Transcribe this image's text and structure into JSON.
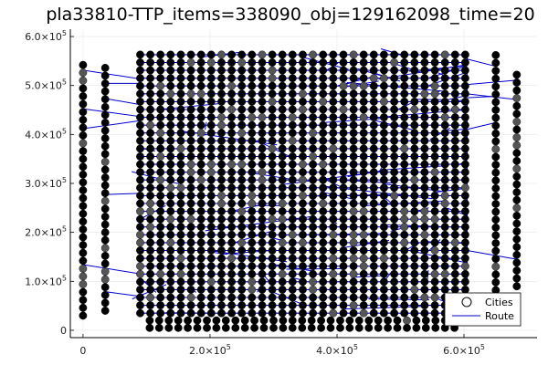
{
  "chart_data": {
    "type": "scatter",
    "title": "pla33810-TTP_items=338090_obj=129162098_time=20",
    "xlabel": "",
    "ylabel": "",
    "xlim": [
      -20000,
      715000
    ],
    "ylim": [
      -15000,
      615000
    ],
    "grid": true,
    "legend_position": "bottom-right",
    "x_ticks": [
      {
        "value": 0,
        "mantissa": "0",
        "exponent": ""
      },
      {
        "value": 200000,
        "mantissa": "2.0×10",
        "exponent": "5"
      },
      {
        "value": 400000,
        "mantissa": "4.0×10",
        "exponent": "5"
      },
      {
        "value": 600000,
        "mantissa": "6.0×10",
        "exponent": "5"
      }
    ],
    "y_ticks": [
      {
        "value": 0,
        "mantissa": "0",
        "exponent": ""
      },
      {
        "value": 100000,
        "mantissa": "1.0×10",
        "exponent": "5"
      },
      {
        "value": 200000,
        "mantissa": "2.0×10",
        "exponent": "5"
      },
      {
        "value": 300000,
        "mantissa": "3.0×10",
        "exponent": "5"
      },
      {
        "value": 400000,
        "mantissa": "4.0×10",
        "exponent": "5"
      },
      {
        "value": 500000,
        "mantissa": "5.0×10",
        "exponent": "5"
      },
      {
        "value": 600000,
        "mantissa": "6.0×10",
        "exponent": "5"
      }
    ],
    "series": [
      {
        "name": "Cities",
        "kind": "markers",
        "color": "#000000"
      },
      {
        "name": "Route",
        "kind": "line",
        "color": "#0000cc"
      }
    ],
    "city_groups": [
      {
        "x": [
          0,
          13000
        ],
        "y": [
          30000,
          555000
        ],
        "step": 16000
      },
      {
        "x": [
          35000,
          35000
        ],
        "y": [
          40000,
          545000
        ],
        "step": 16000
      },
      {
        "x": [
          90000,
          605000
        ],
        "y": [
          35000,
          575000
        ],
        "step": 16000
      },
      {
        "x": [
          105000,
          590000
        ],
        "y": [
          5000,
          20000
        ],
        "step": 15000
      },
      {
        "x": [
          650000,
          650000
        ],
        "y": [
          50000,
          570000
        ],
        "step": 16000
      },
      {
        "x": [
          683000,
          683000
        ],
        "y": [
          90000,
          530000
        ],
        "step": 16000
      }
    ]
  }
}
